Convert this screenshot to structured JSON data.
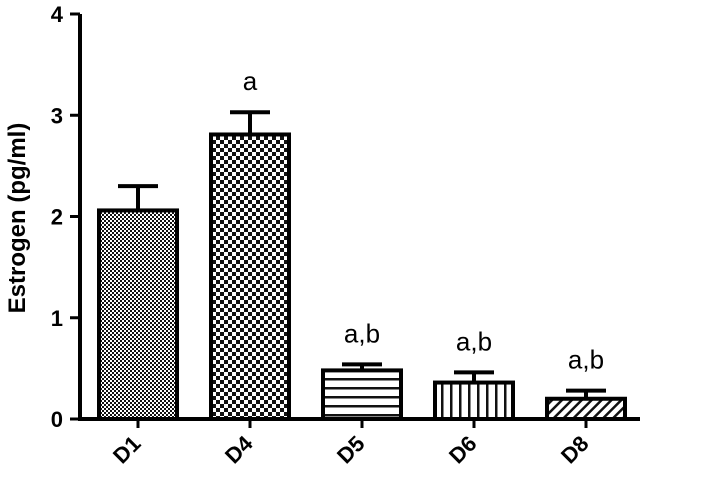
{
  "chart_data": {
    "type": "bar",
    "title": "",
    "xlabel": "",
    "ylabel": "Estrogen (pg/ml)",
    "ylim": [
      0,
      4
    ],
    "yticks": [
      "0",
      "1",
      "2",
      "3",
      "4"
    ],
    "categories": [
      "D1",
      "D4",
      "D5",
      "D6",
      "D8"
    ],
    "values": [
      2.06,
      2.81,
      0.48,
      0.36,
      0.2
    ],
    "errors": [
      0.24,
      0.22,
      0.06,
      0.1,
      0.08
    ],
    "annotations": [
      "",
      "a",
      "a,b",
      "a,b",
      "a,b"
    ],
    "patterns": [
      "dense-check",
      "coarse-check",
      "horizontal-stripes",
      "vertical-stripes",
      "diagonal-stripes"
    ],
    "grid": false,
    "bar_edge_color": "#000000",
    "background": "#ffffff"
  }
}
